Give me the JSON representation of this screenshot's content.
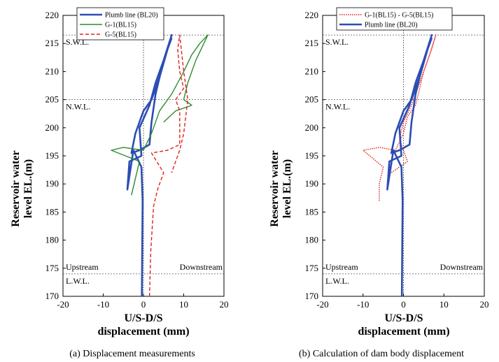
{
  "chart_data": [
    {
      "type": "line",
      "caption": "(a) Displacement measurements",
      "xlabel_line1": "U/S-D/S",
      "xlabel_line2": "displacement (mm)",
      "ylabel_line1": "Reservoir water",
      "ylabel_line2": "level EL.(m)",
      "xlim": [
        -20,
        20
      ],
      "ylim": [
        170,
        220
      ],
      "x_ticks": [
        "-20",
        "-10",
        "0",
        "10",
        "20"
      ],
      "y_ticks": [
        "170",
        "175",
        "180",
        "185",
        "190",
        "195",
        "200",
        "205",
        "210",
        "215",
        "220"
      ],
      "reference_lines": [
        {
          "label": "S.W.L.",
          "y": 216.5
        },
        {
          "label": "N.W.L.",
          "y": 205
        },
        {
          "label": "L.W.L.",
          "y": 174
        }
      ],
      "region_labels": {
        "left": "Upstream",
        "right": "Downstream"
      },
      "legend_position": "top-right",
      "series": [
        {
          "name": "Plumb line (BL20)",
          "color": "#2b4db3",
          "style": "solid",
          "points": [
            [
              -0.4,
              170
            ],
            [
              -0.3,
              180
            ],
            [
              -0.2,
              187
            ],
            [
              -0.5,
              193
            ],
            [
              -2.5,
              196
            ],
            [
              -4,
              189
            ],
            [
              -3.5,
              194
            ],
            [
              -0.5,
              195
            ],
            [
              -1,
              200
            ],
            [
              1.5,
              204
            ],
            [
              3,
              208
            ],
            [
              5,
              212
            ],
            [
              7,
              216.5
            ],
            [
              5,
              212
            ],
            [
              3,
              206
            ],
            [
              2,
              201
            ],
            [
              1.5,
              197
            ],
            [
              -1,
              196
            ],
            [
              -3,
              195.5
            ],
            [
              -2,
              199
            ],
            [
              0,
              203
            ],
            [
              2,
              205
            ],
            [
              4,
              209
            ],
            [
              6,
              214
            ],
            [
              7,
              216
            ]
          ]
        },
        {
          "name": "G-1(BL15)",
          "color": "#2e8b2e",
          "style": "solid",
          "points": [
            [
              -3,
              188
            ],
            [
              -2,
              191
            ],
            [
              -1,
              194
            ],
            [
              -8,
              196
            ],
            [
              -5,
              196.5
            ],
            [
              0,
              196
            ],
            [
              2,
              199
            ],
            [
              4,
              203
            ],
            [
              7,
              206
            ],
            [
              10,
              210
            ],
            [
              12,
              213
            ],
            [
              14,
              215
            ],
            [
              16,
              216.5
            ],
            [
              13,
              212
            ],
            [
              11,
              208
            ],
            [
              10,
              205
            ],
            [
              12,
              204
            ],
            [
              8,
              203
            ],
            [
              5,
              201
            ]
          ]
        },
        {
          "name": "G-5(BL15)",
          "color": "#e02020",
          "style": "dashed",
          "points": [
            [
              1.5,
              170
            ],
            [
              1.8,
              178
            ],
            [
              2.5,
              186
            ],
            [
              3.5,
              189
            ],
            [
              5,
              192
            ],
            [
              2,
              195.5
            ],
            [
              6,
              196
            ],
            [
              9,
              197
            ],
            [
              9,
              203
            ],
            [
              8,
              205
            ],
            [
              10,
              207
            ],
            [
              9,
              210
            ],
            [
              8.5,
              214
            ],
            [
              9,
              216.5
            ],
            [
              10,
              210
            ],
            [
              11,
              205
            ],
            [
              10,
              199
            ],
            [
              9,
              196
            ],
            [
              8,
              194
            ],
            [
              7,
              192
            ]
          ]
        }
      ]
    },
    {
      "type": "line",
      "caption": "(b) Calculation of dam body displacement",
      "xlabel_line1": "U/S-D/S",
      "xlabel_line2": "displacement (mm)",
      "ylabel_line1": "Reservoir water",
      "ylabel_line2": "level EL.(m)",
      "xlim": [
        -20,
        20
      ],
      "ylim": [
        170,
        220
      ],
      "x_ticks": [
        "-20",
        "-10",
        "0",
        "10",
        "20"
      ],
      "y_ticks": [
        "170",
        "175",
        "180",
        "185",
        "190",
        "195",
        "200",
        "205",
        "210",
        "215",
        "220"
      ],
      "reference_lines": [
        {
          "label": "S.W.L.",
          "y": 216.5
        },
        {
          "label": "N.W.L.",
          "y": 205
        },
        {
          "label": "L.W.L.",
          "y": 174
        }
      ],
      "region_labels": {
        "left": "Upstream",
        "right": "Downstream"
      },
      "legend_position": "top-right",
      "series": [
        {
          "name": "G-1(BL15) - G-5(BL15)",
          "color": "#e02020",
          "style": "dotted",
          "points": [
            [
              -6,
              187
            ],
            [
              -6,
              190
            ],
            [
              -5,
              193
            ],
            [
              -10,
              196
            ],
            [
              -6,
              196.5
            ],
            [
              -2,
              196
            ],
            [
              0,
              199
            ],
            [
              1,
              202
            ],
            [
              3,
              204
            ],
            [
              4,
              207
            ],
            [
              5,
              210
            ],
            [
              7,
              214
            ],
            [
              8,
              216.5
            ],
            [
              6,
              212
            ],
            [
              4,
              208
            ],
            [
              2,
              204
            ],
            [
              0,
              201
            ],
            [
              -1,
              198
            ],
            [
              1,
              194
            ],
            [
              -3,
              192
            ]
          ]
        },
        {
          "name": "Plumb line (BL20)",
          "color": "#2b4db3",
          "style": "solid",
          "points": [
            [
              -0.4,
              170
            ],
            [
              -0.3,
              180
            ],
            [
              -0.2,
              187
            ],
            [
              -0.5,
              193
            ],
            [
              -2.5,
              196
            ],
            [
              -4,
              189
            ],
            [
              -3.5,
              194
            ],
            [
              -0.5,
              195
            ],
            [
              -1,
              200
            ],
            [
              1.5,
              204
            ],
            [
              3,
              208
            ],
            [
              5,
              212
            ],
            [
              7,
              216.5
            ],
            [
              5,
              212
            ],
            [
              3,
              206
            ],
            [
              2,
              201
            ],
            [
              1.5,
              197
            ],
            [
              -1,
              196
            ],
            [
              -3,
              195.5
            ],
            [
              -2,
              199
            ],
            [
              0,
              203
            ],
            [
              2,
              205
            ],
            [
              4,
              209
            ],
            [
              6,
              214
            ],
            [
              7,
              216
            ]
          ]
        }
      ]
    }
  ]
}
